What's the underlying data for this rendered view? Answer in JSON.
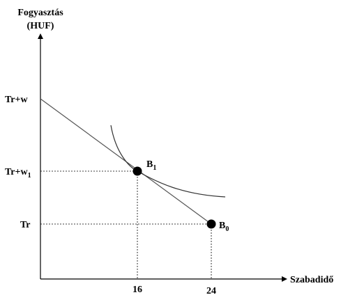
{
  "y_axis_title": {
    "line1": "Fogyasztás",
    "line2": "(HUF)"
  },
  "x_axis_title": "Szabadidő",
  "y_ticks": {
    "top": "Tr+w",
    "middle_main": "Tr+w",
    "middle_sub": "1",
    "bottom": "Tr"
  },
  "x_ticks": {
    "first": "16",
    "second": "24"
  },
  "points": {
    "b1_main": "B",
    "b1_sub": "1",
    "b0_main": "B",
    "b0_sub": "0"
  },
  "chart_data": {
    "type": "line",
    "x_positions": [
      16,
      24
    ],
    "budget_line": {
      "x": [
        0,
        24
      ],
      "y_levels": [
        "Tr+w",
        "Tr"
      ]
    },
    "tangency_point": {
      "name": "B1",
      "x": 16,
      "y_level": "Tr+w1"
    },
    "endowment_point": {
      "name": "B0",
      "x": 24,
      "y_level": "Tr"
    }
  }
}
